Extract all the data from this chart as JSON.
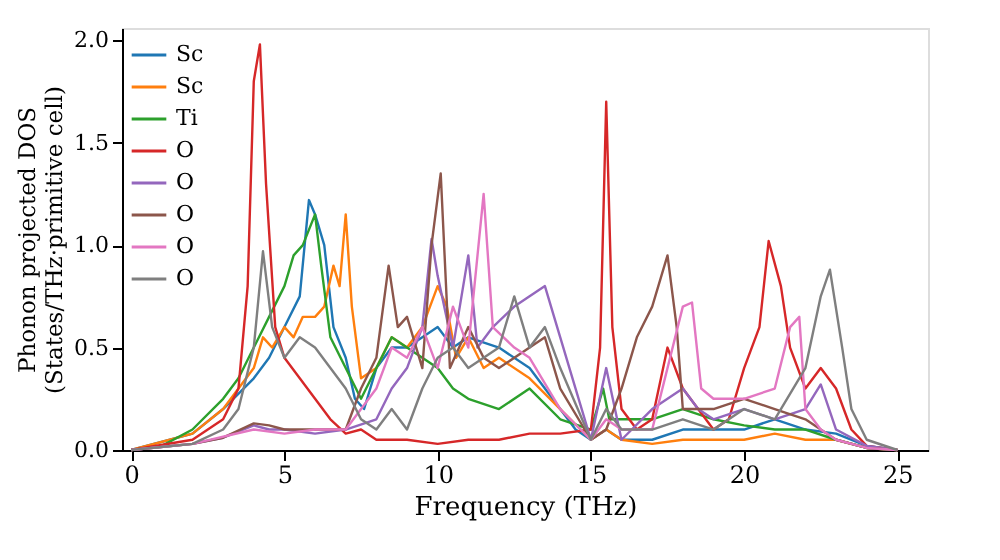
{
  "chart_data": {
    "type": "line",
    "xlabel": "Frequency (THz)",
    "ylabel": "Phonon projected DOS\n(States/THz·primitive cell)",
    "xlim": [
      -0.3,
      26
    ],
    "xticks": [
      0,
      5,
      10,
      15,
      20,
      25
    ],
    "ylim": [
      0,
      2.06
    ],
    "yticks": [
      {
        "value": 0,
        "label": "0.0"
      },
      {
        "value": 0.5,
        "label": "0.5"
      },
      {
        "value": 1,
        "label": "1.0"
      },
      {
        "value": 1.5,
        "label": "1.5"
      },
      {
        "value": 2,
        "label": "2.0"
      }
    ],
    "grid": false,
    "legend": "top left",
    "marker": "none",
    "line_style": "solid",
    "series": [
      {
        "name": "Sc",
        "color": "#1f77b4",
        "x": [
          0,
          2,
          3,
          4,
          4.5,
          5,
          5.5,
          5.8,
          6.0,
          6.3,
          6.6,
          7,
          7.3,
          7.6,
          8,
          8.5,
          9,
          9.5,
          10,
          10.5,
          11,
          12,
          13,
          14,
          14.5,
          15,
          15.5,
          16,
          17,
          18,
          19,
          20,
          21,
          22,
          23,
          24,
          25
        ],
        "values": [
          0,
          0.08,
          0.2,
          0.35,
          0.45,
          0.6,
          0.75,
          1.22,
          1.15,
          1.0,
          0.6,
          0.45,
          0.25,
          0.2,
          0.4,
          0.5,
          0.5,
          0.55,
          0.6,
          0.5,
          0.55,
          0.5,
          0.4,
          0.2,
          0.1,
          0.05,
          0.1,
          0.05,
          0.05,
          0.1,
          0.1,
          0.1,
          0.15,
          0.1,
          0.08,
          0.02,
          0
        ]
      },
      {
        "name": "Sc",
        "color": "#ff7f0e",
        "x": [
          0,
          2,
          3,
          4,
          4.3,
          4.6,
          5,
          5.3,
          5.6,
          6,
          6.3,
          6.6,
          6.8,
          7,
          7.2,
          7.5,
          8,
          8.5,
          9,
          9.5,
          10,
          10.3,
          10.6,
          11,
          11.5,
          12,
          13,
          14,
          15,
          15.5,
          16,
          17,
          18,
          19,
          20,
          21,
          22,
          23,
          24,
          25
        ],
        "values": [
          0,
          0.08,
          0.2,
          0.4,
          0.55,
          0.5,
          0.6,
          0.55,
          0.65,
          0.65,
          0.7,
          0.9,
          0.8,
          1.15,
          0.7,
          0.35,
          0.4,
          0.55,
          0.5,
          0.6,
          0.8,
          0.7,
          0.45,
          0.55,
          0.4,
          0.45,
          0.35,
          0.2,
          0.05,
          0.1,
          0.05,
          0.03,
          0.05,
          0.05,
          0.05,
          0.08,
          0.05,
          0.05,
          0.01,
          0
        ]
      },
      {
        "name": "Ti",
        "color": "#2ca02c",
        "x": [
          0,
          1,
          2,
          3,
          3.5,
          4,
          4.5,
          5,
          5.3,
          5.6,
          6,
          6.2,
          6.5,
          7,
          7.5,
          8,
          8.5,
          9,
          9.5,
          10,
          10.5,
          11,
          12,
          13,
          14,
          15,
          15.4,
          15.6,
          16,
          17,
          18,
          19,
          20,
          21,
          22,
          23,
          24,
          25
        ],
        "values": [
          0,
          0.02,
          0.1,
          0.25,
          0.35,
          0.5,
          0.65,
          0.8,
          0.95,
          1.0,
          1.15,
          0.9,
          0.55,
          0.4,
          0.25,
          0.4,
          0.55,
          0.5,
          0.45,
          0.4,
          0.3,
          0.25,
          0.2,
          0.3,
          0.15,
          0.1,
          0.3,
          0.15,
          0.15,
          0.15,
          0.2,
          0.15,
          0.12,
          0.1,
          0.1,
          0.05,
          0.01,
          0
        ]
      },
      {
        "name": "O",
        "color": "#d62728",
        "x": [
          0,
          2,
          3,
          3.5,
          3.8,
          4.0,
          4.2,
          4.4,
          4.7,
          5,
          5.5,
          6,
          6.5,
          7,
          7.5,
          8,
          9,
          10,
          11,
          12,
          13,
          14,
          15,
          15.3,
          15.5,
          15.7,
          16,
          16.5,
          17,
          17.5,
          18,
          18.5,
          19,
          19.5,
          20,
          20.5,
          20.8,
          21.2,
          21.5,
          22,
          22.5,
          23,
          23.5,
          24,
          25
        ],
        "values": [
          0,
          0.05,
          0.15,
          0.3,
          0.8,
          1.8,
          1.98,
          1.3,
          0.6,
          0.45,
          0.35,
          0.25,
          0.15,
          0.08,
          0.1,
          0.05,
          0.05,
          0.03,
          0.05,
          0.05,
          0.08,
          0.08,
          0.1,
          0.5,
          1.7,
          0.6,
          0.2,
          0.1,
          0.15,
          0.5,
          0.3,
          0.2,
          0.1,
          0.15,
          0.4,
          0.6,
          1.02,
          0.8,
          0.5,
          0.3,
          0.4,
          0.3,
          0.1,
          0.02,
          0
        ]
      },
      {
        "name": "O",
        "color": "#9467bd",
        "x": [
          0,
          2,
          3,
          4,
          4.5,
          5,
          6,
          7,
          8,
          8.5,
          9,
          9.5,
          9.8,
          10,
          10.5,
          11,
          11.3,
          11.8,
          12.5,
          13,
          13.5,
          14,
          14.5,
          15,
          15.5,
          16,
          17,
          18,
          18.5,
          19,
          20,
          21,
          22,
          22.5,
          23,
          24,
          25
        ],
        "values": [
          0,
          0.03,
          0.06,
          0.12,
          0.1,
          0.1,
          0.08,
          0.1,
          0.15,
          0.3,
          0.4,
          0.6,
          1.03,
          0.85,
          0.5,
          0.95,
          0.5,
          0.6,
          0.7,
          0.75,
          0.8,
          0.55,
          0.3,
          0.05,
          0.4,
          0.05,
          0.2,
          0.3,
          0.2,
          0.15,
          0.2,
          0.15,
          0.2,
          0.32,
          0.1,
          0.02,
          0
        ]
      },
      {
        "name": "O",
        "color": "#8c564b",
        "x": [
          0,
          2,
          3,
          4,
          4.5,
          5,
          6,
          7,
          7.5,
          8,
          8.4,
          8.7,
          9,
          9.5,
          9.8,
          10.1,
          10.4,
          11,
          11.5,
          12,
          13,
          13.5,
          14,
          15,
          15.5,
          16,
          16.5,
          17,
          17.5,
          17.8,
          18,
          19,
          20,
          21,
          22,
          22.5,
          23,
          24,
          25
        ],
        "values": [
          0,
          0.03,
          0.06,
          0.13,
          0.12,
          0.1,
          0.1,
          0.1,
          0.3,
          0.45,
          0.9,
          0.6,
          0.65,
          0.4,
          1.0,
          1.35,
          0.4,
          0.6,
          0.45,
          0.4,
          0.5,
          0.55,
          0.3,
          0.05,
          0.1,
          0.3,
          0.55,
          0.7,
          0.95,
          0.6,
          0.2,
          0.2,
          0.25,
          0.2,
          0.15,
          0.1,
          0.05,
          0.01,
          0
        ]
      },
      {
        "name": "O",
        "color": "#e377c2",
        "x": [
          0,
          2,
          4,
          5,
          6,
          7,
          8,
          8.5,
          9,
          9.5,
          10,
          10.5,
          11,
          11.5,
          11.8,
          12.5,
          13,
          14,
          15,
          15.5,
          16,
          17,
          18,
          18.3,
          18.6,
          19,
          20,
          21,
          21.5,
          21.8,
          22,
          22.5,
          23,
          24,
          25
        ],
        "values": [
          0,
          0.03,
          0.1,
          0.08,
          0.1,
          0.1,
          0.3,
          0.5,
          0.45,
          0.6,
          0.4,
          0.7,
          0.5,
          1.25,
          0.6,
          0.5,
          0.45,
          0.2,
          0.05,
          0.15,
          0.1,
          0.1,
          0.7,
          0.72,
          0.3,
          0.25,
          0.25,
          0.3,
          0.6,
          0.65,
          0.2,
          0.1,
          0.05,
          0.01,
          0
        ]
      },
      {
        "name": "O",
        "color": "#7f7f7f",
        "x": [
          0,
          2,
          3,
          3.5,
          4,
          4.3,
          4.6,
          5,
          5.5,
          6,
          6.5,
          7,
          7.5,
          8,
          8.5,
          9,
          9.5,
          10,
          10.5,
          11,
          12,
          12.5,
          13,
          13.5,
          14,
          15,
          15.5,
          16,
          17,
          18,
          19,
          20,
          21,
          22,
          22.5,
          22.8,
          23.2,
          23.5,
          24,
          25
        ],
        "values": [
          0,
          0.03,
          0.1,
          0.2,
          0.5,
          0.97,
          0.6,
          0.45,
          0.55,
          0.5,
          0.4,
          0.3,
          0.15,
          0.1,
          0.2,
          0.1,
          0.3,
          0.45,
          0.5,
          0.4,
          0.5,
          0.75,
          0.5,
          0.6,
          0.4,
          0.05,
          0.2,
          0.1,
          0.1,
          0.15,
          0.1,
          0.2,
          0.15,
          0.4,
          0.75,
          0.88,
          0.5,
          0.2,
          0.05,
          0
        ]
      }
    ]
  }
}
